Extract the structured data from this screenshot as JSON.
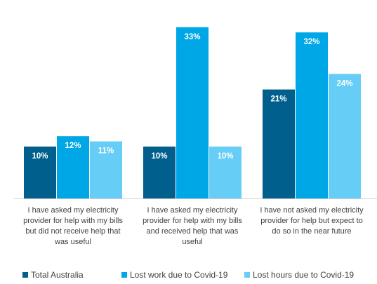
{
  "chart_data": {
    "type": "bar",
    "categories": [
      [
        "I have asked my electricity",
        "provider for help with my bills",
        "but did not receive help that",
        "was useful"
      ],
      [
        "I have asked my electricity",
        "provider for help with my bills",
        "and received help that was",
        "useful"
      ],
      [
        "I have not asked my electricity",
        "provider for help but expect to",
        "do so in the near future"
      ]
    ],
    "series": [
      {
        "name": "Total Australia",
        "values": [
          10,
          10,
          21
        ],
        "labels": [
          "10%",
          "10%",
          "21%"
        ],
        "color": "#005f8c"
      },
      {
        "name": "Lost work due to Covid-19",
        "values": [
          12,
          33,
          32
        ],
        "labels": [
          "12%",
          "33%",
          "32%"
        ],
        "color": "#00a7e6"
      },
      {
        "name": "Lost hours due to Covid-19",
        "values": [
          11,
          10,
          24
        ],
        "labels": [
          "11%",
          "10%",
          "24%"
        ],
        "color": "#66cdf6"
      }
    ],
    "ylim": [
      0,
      35
    ],
    "grid": false,
    "legend_position": "bottom"
  }
}
